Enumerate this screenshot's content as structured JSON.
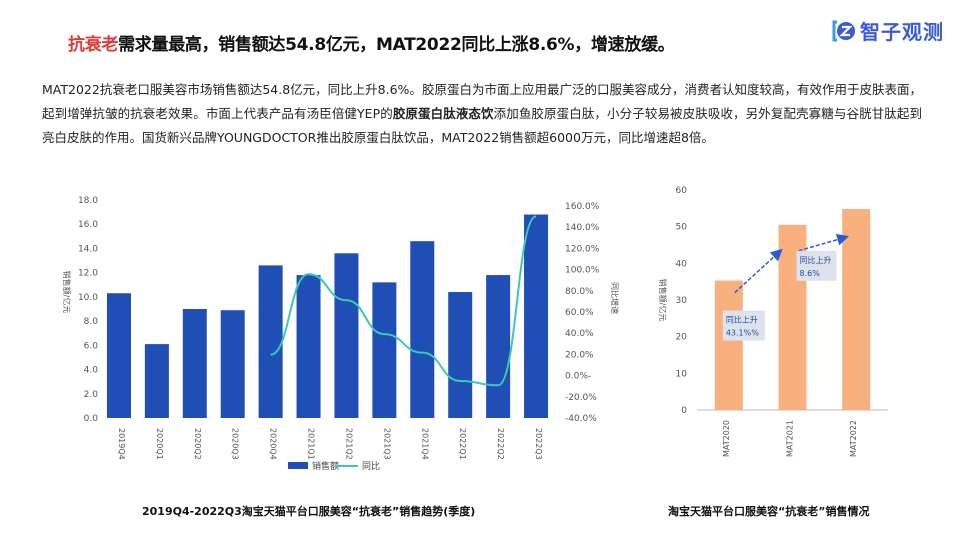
{
  "header": {
    "title_highlight": "抗衰老",
    "title_rest": "需求量最高，销售额达54.8亿元，MAT2022同比上涨8.6%，增速放缓。",
    "brand": "智子观测",
    "brand_icon": "bracket-z-logo-icon",
    "accent_color": "#e03a3a"
  },
  "paragraph": {
    "part1": "MAT2022抗衰老口服美容市场销售额达54.8亿元，同比上升8.6%。胶原蛋白为市面上应用最广泛的口服美容成分，消费者认知度较高，有效作用于皮肤表面，起到增弹抗皱的抗衰老效果。市面上代表产品有汤臣倍健YEP的",
    "bold": "胶原蛋白肽液态饮",
    "part2": "添加鱼胶原蛋白肽，小分子较易被皮肤吸收，另外复配壳寡糖与谷胱甘肽起到亮白皮肤的作用。国货新兴品牌YOUNGDOCTOR推出胶原蛋白肽饮品，MAT2022销售额超6000万元，同比增速超8倍。"
  },
  "chart_data": [
    {
      "type": "bar",
      "title": "2019Q4-2022Q3淘宝天猫平台口服美容“抗衰老”销售趋势(季度)",
      "categories": [
        "2019Q4",
        "2020Q1",
        "2020Q2",
        "2020Q3",
        "2020Q4",
        "2021Q1",
        "2021Q2",
        "2021Q3",
        "2021Q4",
        "2022Q1",
        "2022Q2",
        "2022Q3"
      ],
      "y_ticks": [
        "18.0",
        "16.0",
        "14.0",
        "12.0",
        "10.0",
        "8.0",
        "6.0",
        "4.0",
        "2.0",
        "0.0"
      ],
      "y_ticks_right": [
        "160.0%",
        "140.0%",
        "120.0%",
        "100.0%",
        "80.0%",
        "60.0%",
        "40.0%",
        "20.0%",
        "0.0%-",
        "-20.0%",
        "-40.0%"
      ],
      "ylabel": "销售额/亿元",
      "ylabel_right": "同比增速",
      "ylim": [
        0,
        18
      ],
      "ylim_right": [
        -40,
        160
      ],
      "bar_color": "#1f4fb5",
      "line_color": "#3cc9b0",
      "series": [
        {
          "name": "销售额",
          "kind": "bar",
          "values": [
            10.3,
            6.1,
            9.0,
            8.9,
            12.6,
            11.8,
            13.6,
            11.2,
            14.6,
            10.4,
            11.8,
            16.8
          ]
        },
        {
          "name": "同比",
          "kind": "line",
          "values": [
            null,
            null,
            null,
            null,
            18,
            92,
            68,
            37,
            20,
            -6,
            -10,
            145
          ]
        }
      ]
    },
    {
      "type": "bar",
      "title": "淘宝天猫平台口服美容“抗衰老”销售情况",
      "categories": [
        "MAT2020",
        "MAT2021",
        "MAT2022"
      ],
      "values": [
        35.3,
        50.5,
        54.8
      ],
      "ylabel": "销售额/亿元",
      "y_ticks": [
        "60",
        "50",
        "40",
        "30",
        "20",
        "10",
        "0"
      ],
      "ylim": [
        0,
        60
      ],
      "bar_color": "#f8b07e",
      "annotations": [
        {
          "label": "同比上升",
          "value": "43.1%%"
        },
        {
          "label": "同比上升",
          "value": "8.6%"
        }
      ]
    }
  ]
}
